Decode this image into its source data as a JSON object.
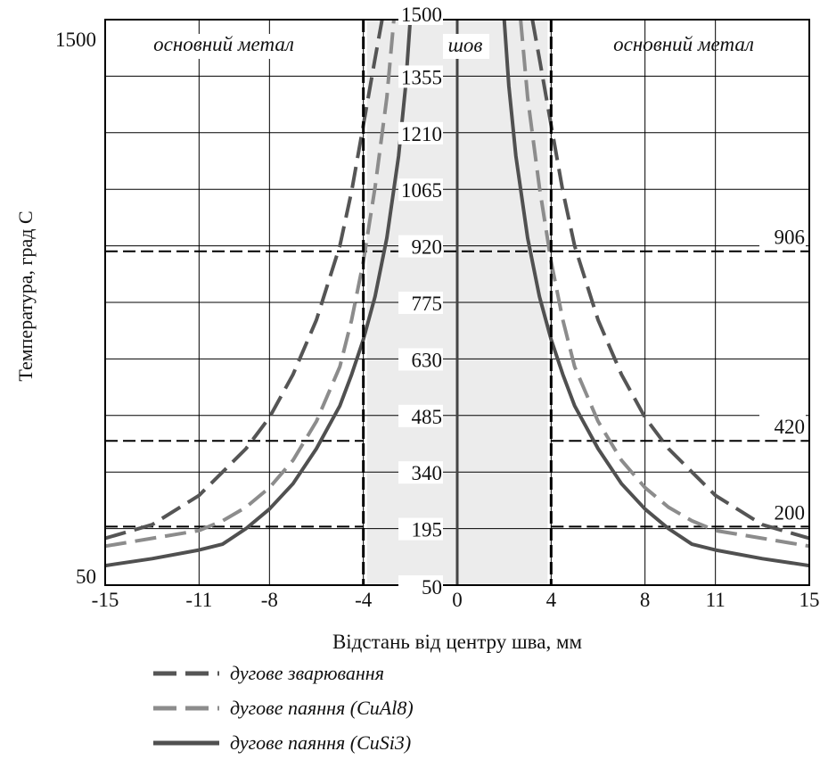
{
  "chart_data": {
    "type": "line",
    "title": "",
    "xlabel": "Відстань від центру шва, мм",
    "ylabel": "Температура, град С",
    "xlim": [
      -15,
      15
    ],
    "ylim": [
      50,
      1500
    ],
    "x_ticks": [
      -15,
      -11,
      -8,
      -4,
      0,
      4,
      8,
      11,
      15
    ],
    "y_tick_labels_left": [
      {
        "label": "1500",
        "value": 1500
      },
      {
        "label": "50",
        "value": 50
      }
    ],
    "y_tick_labels_center": [
      {
        "label": "1500",
        "value": 1500
      },
      {
        "label": "1355",
        "value": 1355
      },
      {
        "label": "1210",
        "value": 1210
      },
      {
        "label": "1065",
        "value": 1065
      },
      {
        "label": "920",
        "value": 920
      },
      {
        "label": "775",
        "value": 775
      },
      {
        "label": "630",
        "value": 630
      },
      {
        "label": "485",
        "value": 485
      },
      {
        "label": "340",
        "value": 340
      },
      {
        "label": "195",
        "value": 195
      },
      {
        "label": "50",
        "value": 50
      }
    ],
    "grid": true,
    "region_labels": {
      "left": "основний метал",
      "center": "шов",
      "right": "основний метал"
    },
    "weld_zone": [
      -4,
      4
    ],
    "reference_lines": [
      {
        "label": "906",
        "y": 906
      },
      {
        "label": "420",
        "y": 420
      },
      {
        "label": "200",
        "y": 200
      }
    ],
    "series": [
      {
        "name": "дугове зварювання",
        "style": "dashed",
        "color": "#555555",
        "points": [
          [
            -15,
            170
          ],
          [
            -13,
            205
          ],
          [
            -11,
            280
          ],
          [
            -10,
            340
          ],
          [
            -9,
            400
          ],
          [
            -8,
            480
          ],
          [
            -7,
            590
          ],
          [
            -6,
            730
          ],
          [
            -5,
            920
          ],
          [
            -4.5,
            1060
          ],
          [
            -4,
            1230
          ],
          [
            -3.5,
            1400
          ],
          [
            -3.2,
            1500
          ],
          [
            3.2,
            1500
          ],
          [
            3.5,
            1400
          ],
          [
            4,
            1230
          ],
          [
            4.5,
            1060
          ],
          [
            5,
            920
          ],
          [
            6,
            730
          ],
          [
            7,
            590
          ],
          [
            8,
            480
          ],
          [
            9,
            400
          ],
          [
            10,
            340
          ],
          [
            11,
            280
          ],
          [
            13,
            205
          ],
          [
            15,
            170
          ]
        ]
      },
      {
        "name": "дугове паяння (CuAl8)",
        "style": "dashed",
        "color": "#8c8c8c",
        "points": [
          [
            -15,
            150
          ],
          [
            -13,
            170
          ],
          [
            -11,
            190
          ],
          [
            -10,
            215
          ],
          [
            -9,
            250
          ],
          [
            -8,
            300
          ],
          [
            -7,
            370
          ],
          [
            -6,
            470
          ],
          [
            -5,
            610
          ],
          [
            -4.5,
            730
          ],
          [
            -4,
            880
          ],
          [
            -3.5,
            1070
          ],
          [
            -3,
            1300
          ],
          [
            -2.7,
            1500
          ],
          [
            2.7,
            1500
          ],
          [
            3,
            1300
          ],
          [
            3.5,
            1070
          ],
          [
            4,
            880
          ],
          [
            4.5,
            730
          ],
          [
            5,
            610
          ],
          [
            6,
            470
          ],
          [
            7,
            370
          ],
          [
            8,
            300
          ],
          [
            9,
            250
          ],
          [
            10,
            215
          ],
          [
            11,
            190
          ],
          [
            13,
            170
          ],
          [
            15,
            150
          ]
        ]
      },
      {
        "name": "дугове паяння (CuSi3)",
        "style": "solid",
        "color": "#505050",
        "points": [
          [
            -15,
            100
          ],
          [
            -13,
            118
          ],
          [
            -11,
            140
          ],
          [
            -10,
            155
          ],
          [
            -9,
            195
          ],
          [
            -8,
            245
          ],
          [
            -7,
            310
          ],
          [
            -6,
            400
          ],
          [
            -5,
            510
          ],
          [
            -4.5,
            590
          ],
          [
            -4,
            680
          ],
          [
            -3.5,
            790
          ],
          [
            -3,
            940
          ],
          [
            -2.5,
            1150
          ],
          [
            -2.2,
            1330
          ],
          [
            -2,
            1500
          ],
          [
            2,
            1500
          ],
          [
            2.2,
            1330
          ],
          [
            2.5,
            1150
          ],
          [
            3,
            940
          ],
          [
            3.5,
            790
          ],
          [
            4,
            680
          ],
          [
            4.5,
            590
          ],
          [
            5,
            510
          ],
          [
            6,
            400
          ],
          [
            7,
            310
          ],
          [
            8,
            245
          ],
          [
            9,
            195
          ],
          [
            10,
            155
          ],
          [
            11,
            140
          ],
          [
            13,
            118
          ],
          [
            15,
            100
          ]
        ]
      }
    ]
  }
}
